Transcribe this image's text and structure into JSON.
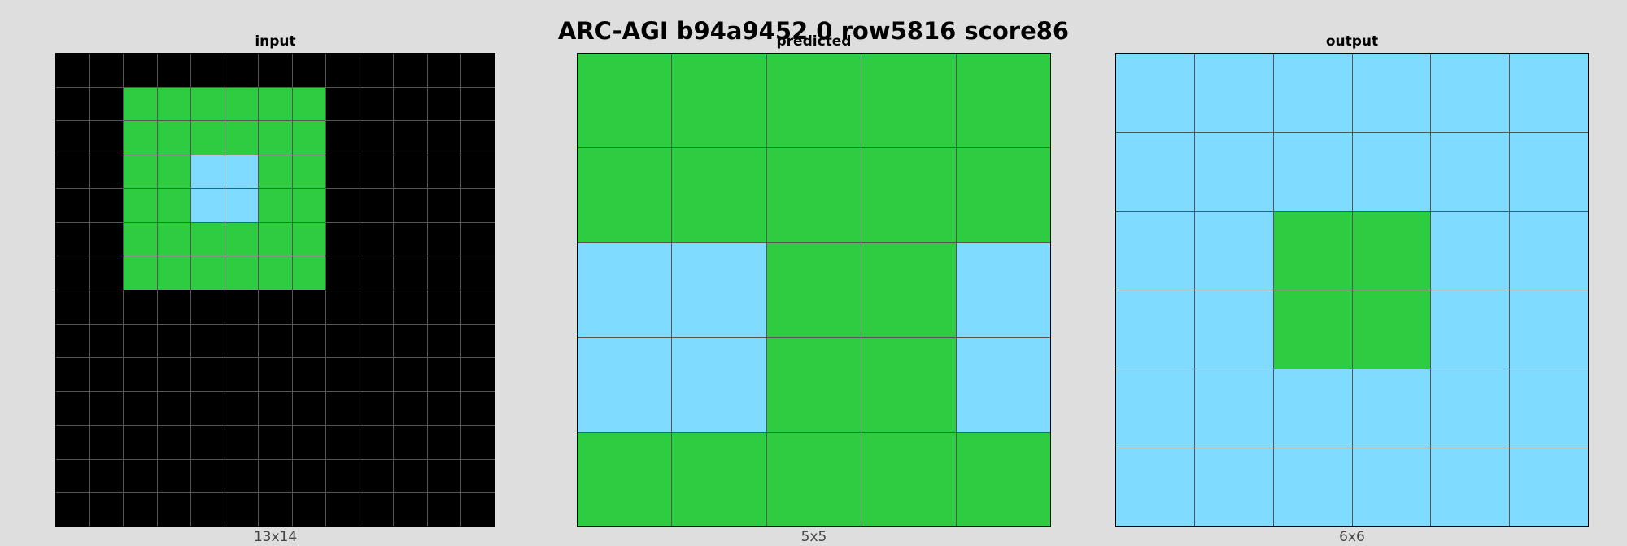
{
  "title": "ARC-AGI b94a9452 0 row5816 score86",
  "palette": {
    "0": "#000000",
    "3": "#2ecc40",
    "8": "#7fdbff"
  },
  "panels": [
    {
      "title": "input",
      "caption": "13x14",
      "rows": 14,
      "cols": 13,
      "grid": [
        [
          0,
          0,
          0,
          0,
          0,
          0,
          0,
          0,
          0,
          0,
          0,
          0,
          0
        ],
        [
          0,
          0,
          3,
          3,
          3,
          3,
          3,
          3,
          0,
          0,
          0,
          0,
          0
        ],
        [
          0,
          0,
          3,
          3,
          3,
          3,
          3,
          3,
          0,
          0,
          0,
          0,
          0
        ],
        [
          0,
          0,
          3,
          3,
          8,
          8,
          3,
          3,
          0,
          0,
          0,
          0,
          0
        ],
        [
          0,
          0,
          3,
          3,
          8,
          8,
          3,
          3,
          0,
          0,
          0,
          0,
          0
        ],
        [
          0,
          0,
          3,
          3,
          3,
          3,
          3,
          3,
          0,
          0,
          0,
          0,
          0
        ],
        [
          0,
          0,
          3,
          3,
          3,
          3,
          3,
          3,
          0,
          0,
          0,
          0,
          0
        ],
        [
          0,
          0,
          0,
          0,
          0,
          0,
          0,
          0,
          0,
          0,
          0,
          0,
          0
        ],
        [
          0,
          0,
          0,
          0,
          0,
          0,
          0,
          0,
          0,
          0,
          0,
          0,
          0
        ],
        [
          0,
          0,
          0,
          0,
          0,
          0,
          0,
          0,
          0,
          0,
          0,
          0,
          0
        ],
        [
          0,
          0,
          0,
          0,
          0,
          0,
          0,
          0,
          0,
          0,
          0,
          0,
          0
        ],
        [
          0,
          0,
          0,
          0,
          0,
          0,
          0,
          0,
          0,
          0,
          0,
          0,
          0
        ],
        [
          0,
          0,
          0,
          0,
          0,
          0,
          0,
          0,
          0,
          0,
          0,
          0,
          0
        ],
        [
          0,
          0,
          0,
          0,
          0,
          0,
          0,
          0,
          0,
          0,
          0,
          0,
          0
        ]
      ]
    },
    {
      "title": "predicted",
      "caption": "5x5",
      "rows": 5,
      "cols": 5,
      "grid": [
        [
          3,
          3,
          3,
          3,
          3
        ],
        [
          3,
          3,
          3,
          3,
          3
        ],
        [
          8,
          8,
          3,
          3,
          8
        ],
        [
          8,
          8,
          3,
          3,
          8
        ],
        [
          3,
          3,
          3,
          3,
          3
        ]
      ]
    },
    {
      "title": "output",
      "caption": "6x6",
      "rows": 6,
      "cols": 6,
      "grid": [
        [
          8,
          8,
          8,
          8,
          8,
          8
        ],
        [
          8,
          8,
          8,
          8,
          8,
          8
        ],
        [
          8,
          8,
          3,
          3,
          8,
          8
        ],
        [
          8,
          8,
          3,
          3,
          8,
          8
        ],
        [
          8,
          8,
          8,
          8,
          8,
          8
        ],
        [
          8,
          8,
          8,
          8,
          8,
          8
        ]
      ]
    }
  ]
}
